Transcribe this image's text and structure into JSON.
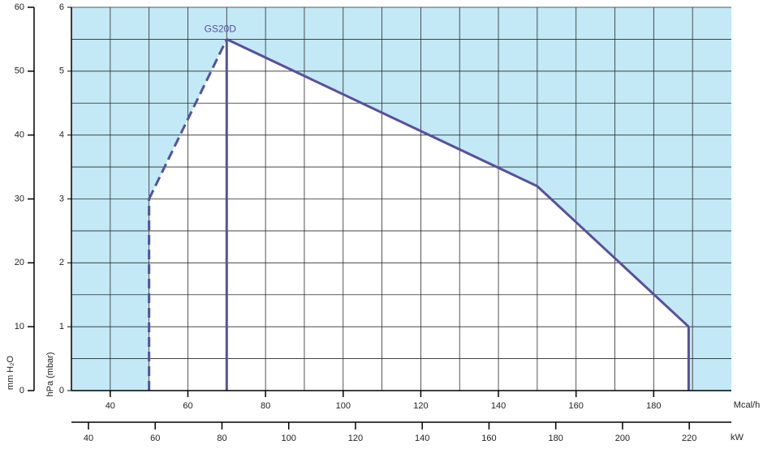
{
  "chart_data": {
    "type": "area",
    "series": [
      {
        "name": "GS20D",
        "color": "#56519a",
        "x": [
          50,
          50,
          70,
          150,
          189,
          189
        ],
        "values": [
          0,
          3,
          5.5,
          3.2,
          1,
          0
        ],
        "dashed_segments": 2
      }
    ],
    "ref_lines": [
      {
        "x": [
          70,
          70
        ],
        "values": [
          0,
          5.5
        ]
      }
    ],
    "xlabel": "Mcal/h",
    "xlim": [
      30,
      200
    ],
    "xticks": [
      40,
      60,
      80,
      100,
      120,
      140,
      160,
      180
    ],
    "x2label": "kW",
    "x2lim": [
      34.9,
      232.6
    ],
    "x2ticks": [
      40,
      60,
      80,
      100,
      120,
      140,
      160,
      180,
      200,
      220
    ],
    "ylabel": "hPa (mbar)",
    "ylim": [
      0,
      6
    ],
    "yticks": [
      0,
      1,
      2,
      3,
      4,
      5,
      6
    ],
    "y2label": "mm H₂O",
    "y2lim": [
      0,
      60
    ],
    "y2ticks": [
      0,
      10,
      20,
      30,
      40,
      50,
      60
    ],
    "grid": true,
    "background": "#c3e8f6",
    "field_color": "#ffffff"
  }
}
